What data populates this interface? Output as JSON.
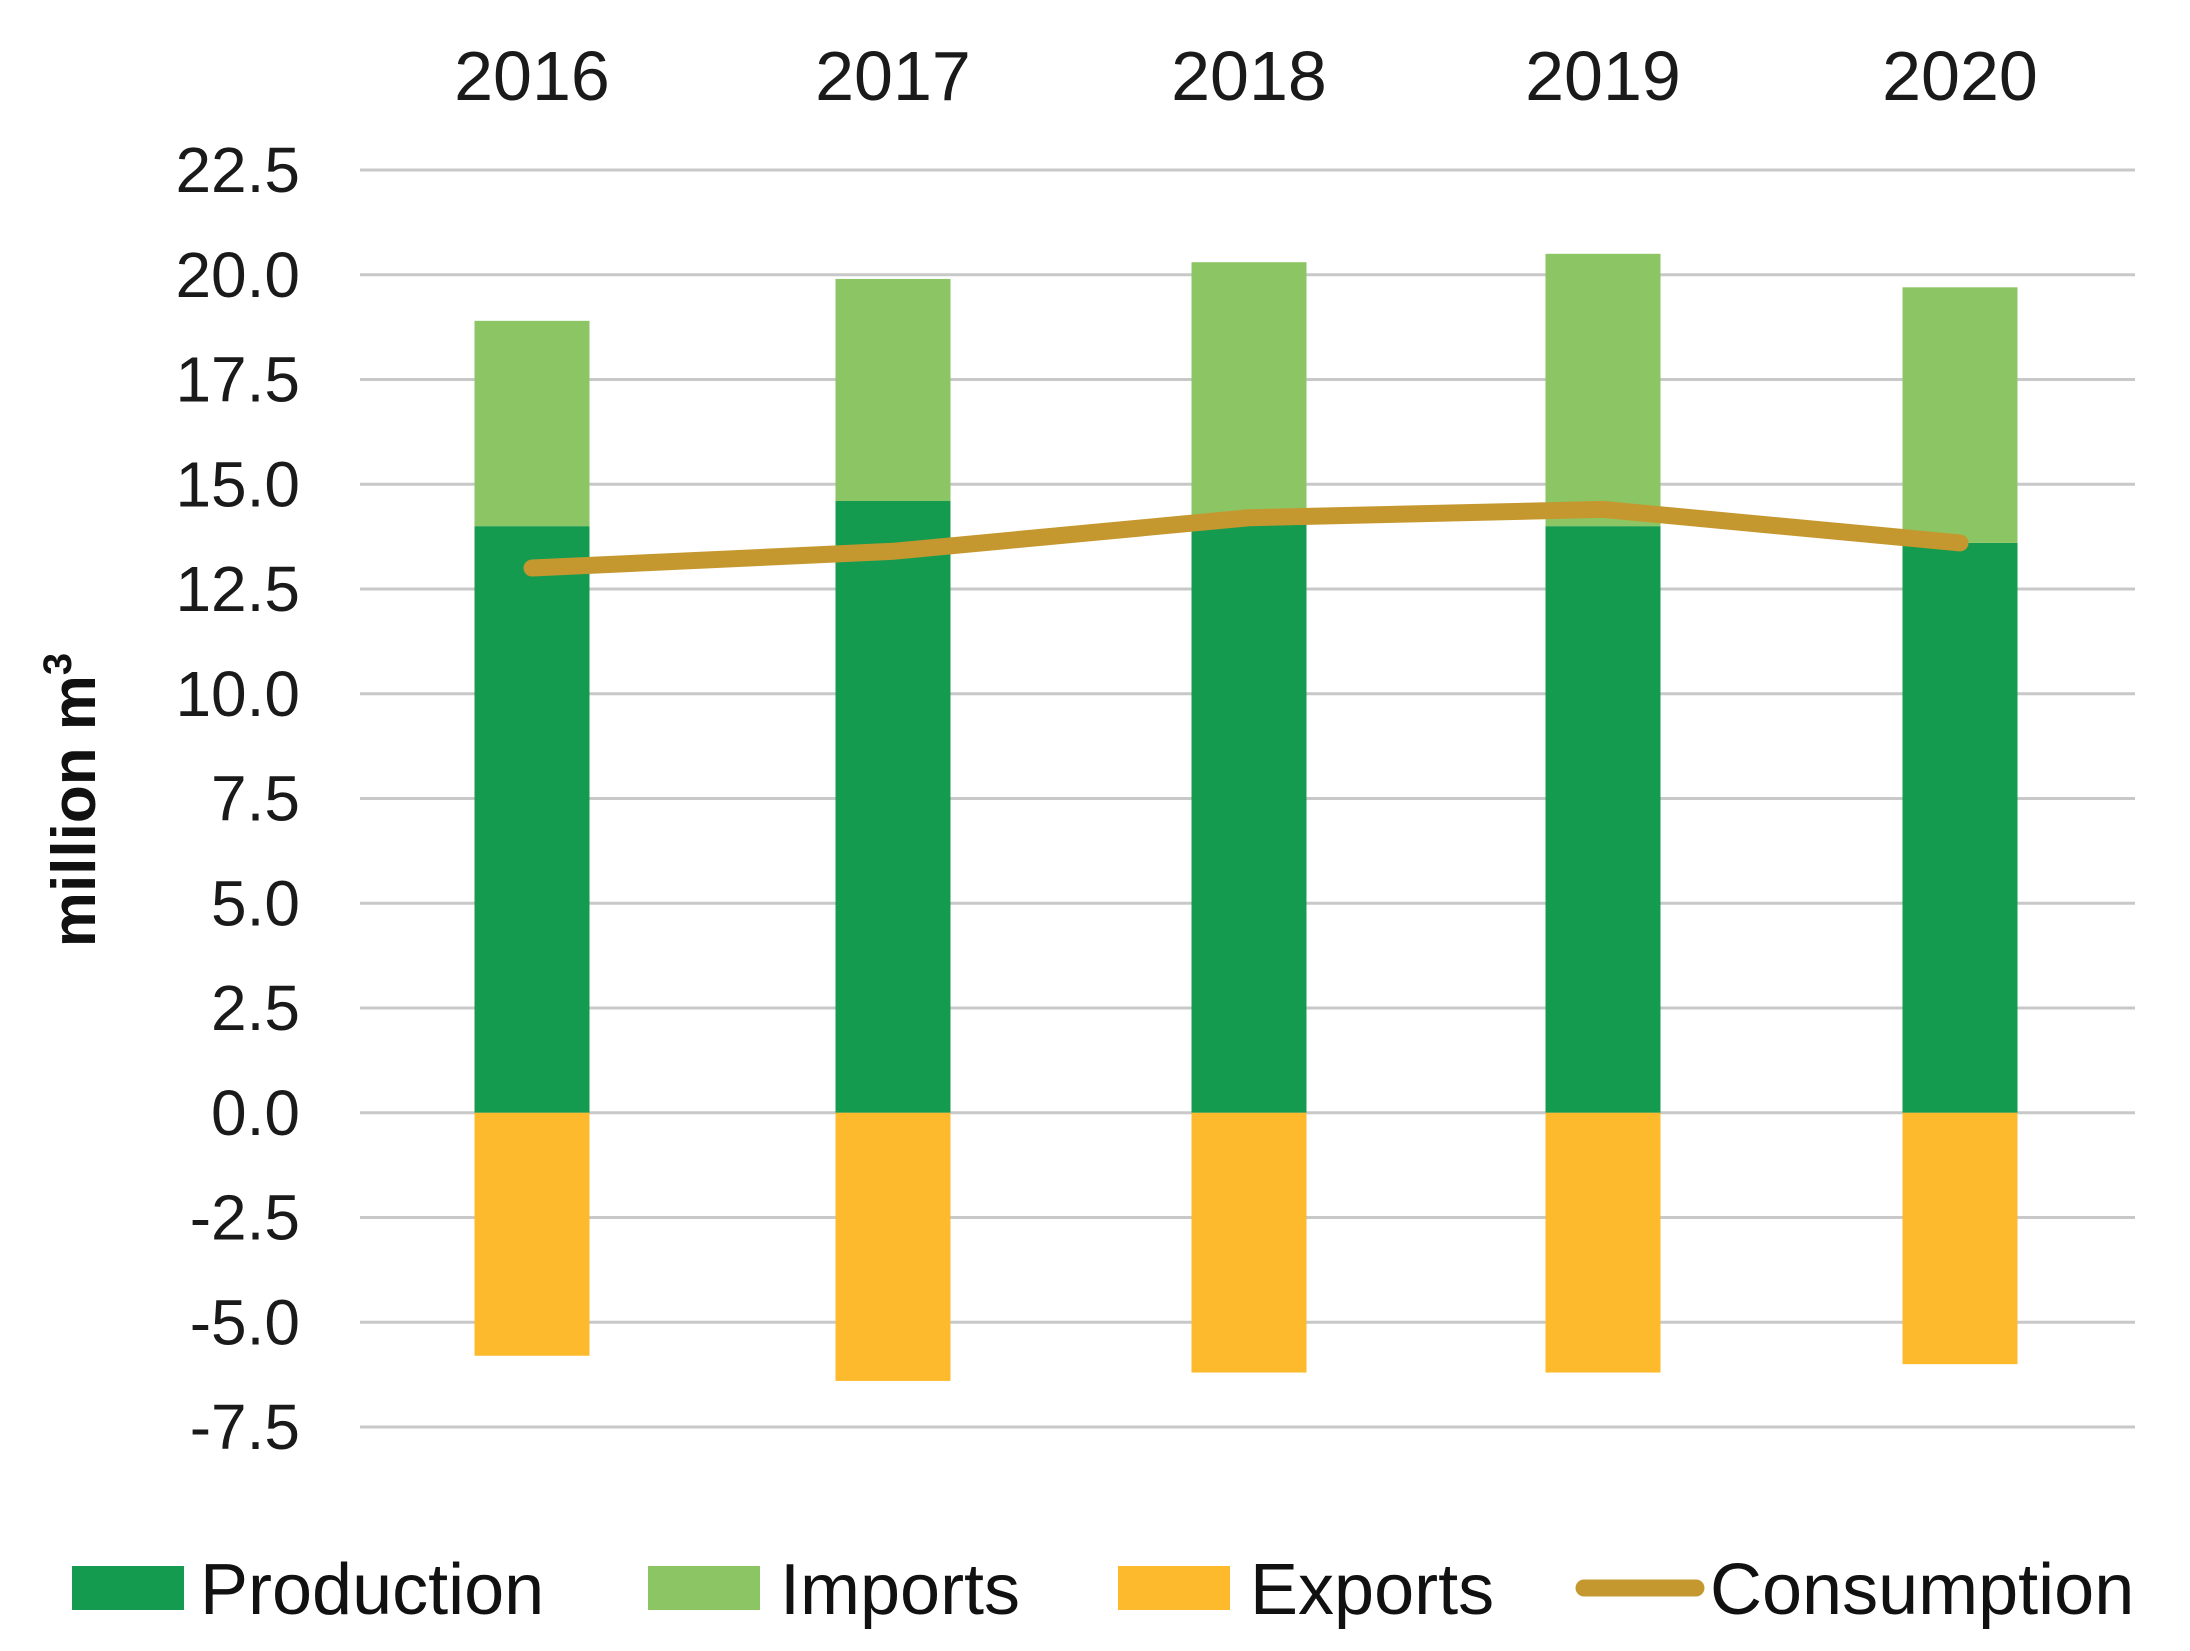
{
  "chart_data": {
    "type": "bar",
    "stacked": true,
    "categories": [
      "2016",
      "2017",
      "2018",
      "2019",
      "2020"
    ],
    "series": [
      {
        "name": "Production",
        "kind": "bar",
        "color": "#149B50",
        "values": [
          14.0,
          14.6,
          14.2,
          14.0,
          13.6
        ]
      },
      {
        "name": "Imports",
        "kind": "bar",
        "color": "#8CC664",
        "values": [
          4.9,
          5.3,
          6.1,
          6.5,
          6.1
        ]
      },
      {
        "name": "Exports",
        "kind": "bar",
        "color": "#FDBA2C",
        "values": [
          -5.8,
          -6.4,
          -6.2,
          -6.2,
          -6.0
        ]
      },
      {
        "name": "Consumption",
        "kind": "line",
        "color": "#C5982F",
        "values": [
          13.0,
          13.4,
          14.2,
          14.4,
          13.6
        ]
      }
    ],
    "title": "",
    "xlabel": "",
    "ylabel": "million m",
    "ylabel_superscript": "3",
    "ylim": [
      -7.5,
      22.5
    ],
    "yticks": [
      "22.5",
      "20.0",
      "17.5",
      "15.0",
      "12.5",
      "10.0",
      "7.5",
      "5.0",
      "2.5",
      "0.0",
      "-2.5",
      "-5.0",
      "-7.5"
    ],
    "x_axis_position": "top",
    "grid": true,
    "legend": [
      "Production",
      "Imports",
      "Exports",
      "Consumption"
    ],
    "legend_position": "bottom"
  }
}
